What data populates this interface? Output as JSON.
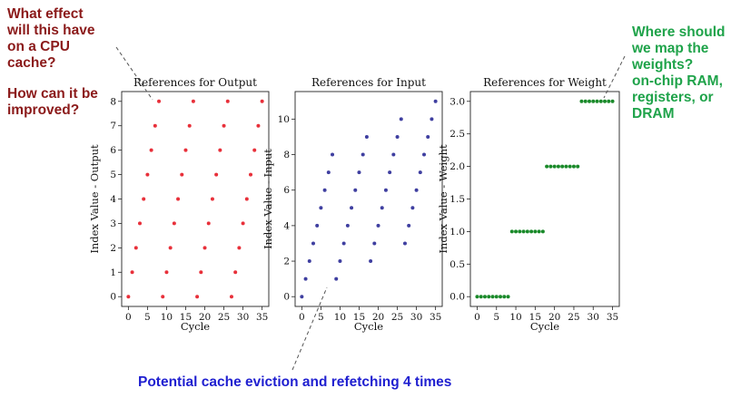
{
  "annotations": {
    "top_left": [
      "What effect",
      "will this have",
      "on a CPU",
      "cache?"
    ],
    "mid_left": [
      "How can it be",
      "improved?"
    ],
    "top_right": [
      "Where should",
      "we map the",
      "weights?",
      "on-chip RAM,",
      "registers, or",
      "DRAM"
    ],
    "bottom": "Potential cache eviction and refetching 4 times",
    "colors": {
      "left": "#8b1a1a",
      "right": "#1fa34a",
      "bottom": "#1f1fd0"
    }
  },
  "chart_data": [
    {
      "type": "scatter",
      "title": "References for Output",
      "xlabel": "Cycle",
      "ylabel": "Index Value - Output",
      "xlim": [
        -1.75,
        36.75
      ],
      "ylim": [
        -0.4,
        8.4
      ],
      "xticks": [
        0,
        5,
        10,
        15,
        20,
        25,
        30,
        35
      ],
      "yticks": [
        0,
        1,
        2,
        3,
        4,
        5,
        6,
        7,
        8
      ],
      "ytick_labels": [
        "0",
        "1",
        "2",
        "3",
        "4",
        "5",
        "6",
        "7",
        "8"
      ],
      "color": "#e8303a",
      "x": [
        0,
        1,
        2,
        3,
        4,
        5,
        6,
        7,
        8,
        9,
        10,
        11,
        12,
        13,
        14,
        15,
        16,
        17,
        18,
        19,
        20,
        21,
        22,
        23,
        24,
        25,
        26,
        27,
        28,
        29,
        30,
        31,
        32,
        33,
        34,
        35
      ],
      "y": [
        0,
        1,
        2,
        3,
        4,
        5,
        6,
        7,
        8,
        0,
        1,
        2,
        3,
        4,
        5,
        6,
        7,
        8,
        0,
        1,
        2,
        3,
        4,
        5,
        6,
        7,
        8,
        0,
        1,
        2,
        3,
        4,
        5,
        6,
        7,
        8
      ]
    },
    {
      "type": "scatter",
      "title": "References for Input",
      "xlabel": "Cycle",
      "ylabel": "Index Value - Input",
      "xlim": [
        -1.75,
        36.75
      ],
      "ylim": [
        -0.55,
        11.55
      ],
      "xticks": [
        0,
        5,
        10,
        15,
        20,
        25,
        30,
        35
      ],
      "yticks": [
        0,
        2,
        4,
        6,
        8,
        10
      ],
      "ytick_labels": [
        "0",
        "2",
        "4",
        "6",
        "8",
        "10"
      ],
      "color": "#3f3fa0",
      "x": [
        0,
        1,
        2,
        3,
        4,
        5,
        6,
        7,
        8,
        9,
        10,
        11,
        12,
        13,
        14,
        15,
        16,
        17,
        18,
        19,
        20,
        21,
        22,
        23,
        24,
        25,
        26,
        27,
        28,
        29,
        30,
        31,
        32,
        33,
        34,
        35
      ],
      "y": [
        0,
        1,
        2,
        3,
        4,
        5,
        6,
        7,
        8,
        1,
        2,
        3,
        4,
        5,
        6,
        7,
        8,
        9,
        2,
        3,
        4,
        5,
        6,
        7,
        8,
        9,
        10,
        3,
        4,
        5,
        6,
        7,
        8,
        9,
        10,
        11
      ]
    },
    {
      "type": "scatter",
      "title": "References for Weight",
      "xlabel": "Cycle",
      "ylabel": "Index Value - Weight",
      "xlim": [
        -1.75,
        36.75
      ],
      "ylim": [
        -0.15,
        3.15
      ],
      "xticks": [
        0,
        5,
        10,
        15,
        20,
        25,
        30,
        35
      ],
      "yticks": [
        0,
        0.5,
        1,
        1.5,
        2,
        2.5,
        3
      ],
      "ytick_labels": [
        "0.0",
        "0.5",
        "1.0",
        "1.5",
        "2.0",
        "2.5",
        "3.0"
      ],
      "color": "#1a8a2a",
      "x": [
        0,
        1,
        2,
        3,
        4,
        5,
        6,
        7,
        8,
        9,
        10,
        11,
        12,
        13,
        14,
        15,
        16,
        17,
        18,
        19,
        20,
        21,
        22,
        23,
        24,
        25,
        26,
        27,
        28,
        29,
        30,
        31,
        32,
        33,
        34,
        35
      ],
      "y": [
        0,
        0,
        0,
        0,
        0,
        0,
        0,
        0,
        0,
        1,
        1,
        1,
        1,
        1,
        1,
        1,
        1,
        1,
        2,
        2,
        2,
        2,
        2,
        2,
        2,
        2,
        2,
        3,
        3,
        3,
        3,
        3,
        3,
        3,
        3,
        3
      ]
    }
  ]
}
